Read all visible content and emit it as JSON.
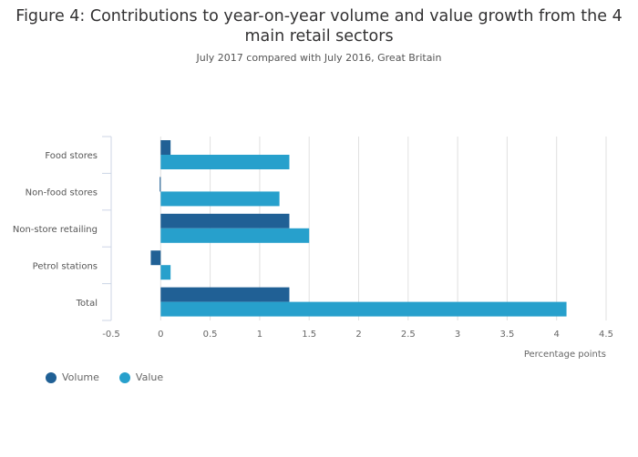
{
  "chart_data": {
    "type": "bar",
    "orientation": "horizontal",
    "title": "Figure 4: Contributions to year-on-year volume and value growth from the 4 main retail sectors",
    "subtitle": "July 2017 compared with July 2016, Great Britain",
    "categories": [
      "Food stores",
      "Non-food stores",
      "Non-store retailing",
      "Petrol stations",
      "Total"
    ],
    "series": [
      {
        "name": "Volume",
        "color": "#206095",
        "values": [
          0.1,
          -0.01,
          1.3,
          -0.1,
          1.3
        ]
      },
      {
        "name": "Value",
        "color": "#27a0cc",
        "values": [
          1.3,
          1.2,
          1.5,
          0.1,
          4.1
        ]
      }
    ],
    "xlabel": "Percentage points",
    "ylabel": "",
    "xlim": [
      -0.5,
      4.5
    ],
    "xticks": [
      "-0.5",
      "0",
      "0.5",
      "1",
      "1.5",
      "2",
      "2.5",
      "3",
      "3.5",
      "4",
      "4.5"
    ],
    "grid": true,
    "legend": "bottom-left"
  }
}
